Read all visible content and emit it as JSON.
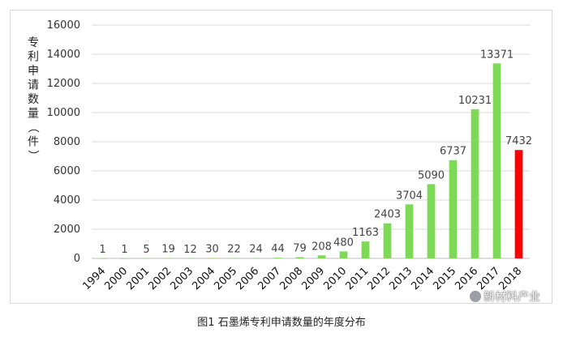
{
  "chart_data": {
    "type": "bar",
    "categories": [
      "1994",
      "2000",
      "2001",
      "2002",
      "2003",
      "2004",
      "2005",
      "2006",
      "2007",
      "2008",
      "2009",
      "2010",
      "2011",
      "2012",
      "2013",
      "2014",
      "2015",
      "2016",
      "2017",
      "2018"
    ],
    "values": [
      1,
      1,
      5,
      19,
      12,
      30,
      22,
      24,
      44,
      79,
      208,
      480,
      1163,
      2403,
      3704,
      5090,
      6737,
      10231,
      13371,
      7432
    ],
    "data_labels": [
      "1",
      "1",
      "5",
      "19",
      "12",
      "30",
      "22",
      "24",
      "44",
      "79",
      "208",
      "480",
      "1163",
      "2403",
      "3704",
      "5090",
      "6737",
      "10231",
      "13371",
      "7432"
    ],
    "ylabel": "专利申请数量（件）",
    "ylim": [
      0,
      16000
    ],
    "yticks": [
      "0",
      "2000",
      "4000",
      "6000",
      "8000",
      "10000",
      "12000",
      "14000",
      "16000"
    ],
    "grid": true,
    "colors": {
      "bar": "#7ed957",
      "highlight": "#ff0000",
      "grid": "#d9d9d9",
      "axis": "#bfbfbf"
    },
    "highlight_index": 19
  },
  "watermark": "新材料产业",
  "caption": "图1 石墨烯专利申请数量的年度分布"
}
